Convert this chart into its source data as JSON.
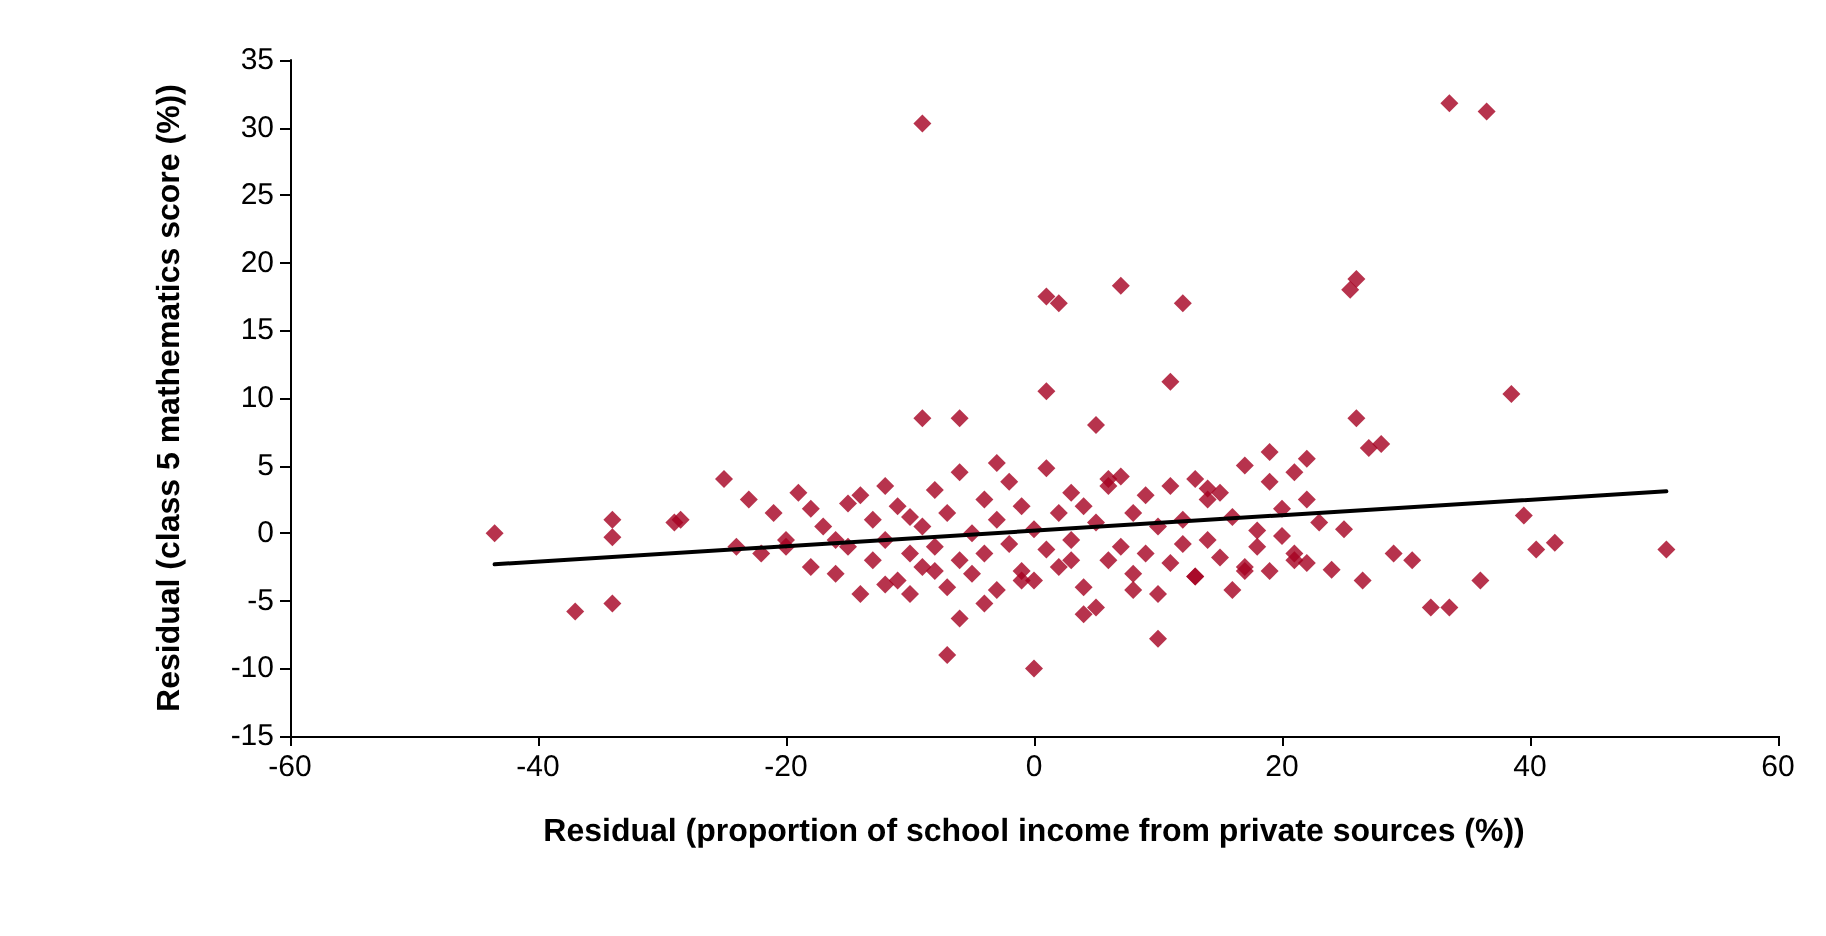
{
  "chart_data": {
    "type": "scatter",
    "xlabel": "Residual (proportion of school income from private sources (%))",
    "ylabel": "Residual (class 5 mathematics score (%))",
    "xlim": [
      -60,
      60
    ],
    "ylim": [
      -15,
      35
    ],
    "xticks": [
      -60,
      -40,
      -20,
      0,
      20,
      40,
      60
    ],
    "yticks": [
      -15,
      -10,
      -5,
      0,
      5,
      10,
      15,
      20,
      25,
      30,
      35
    ],
    "grid": false,
    "marker": "diamond",
    "series": [
      {
        "color": "#a50021",
        "x": [
          -43.5,
          -37,
          -34,
          -34,
          -34,
          -29,
          -28.5,
          -25,
          -9,
          -9,
          -6,
          1,
          2,
          7,
          12,
          1,
          11,
          5,
          25.5,
          26,
          26,
          27,
          28,
          33.5,
          36.5,
          38.5,
          39.5,
          40.5,
          42,
          51,
          36,
          32,
          33.5,
          30.5,
          29,
          26.5,
          24,
          25,
          -7,
          0,
          10,
          4,
          -6,
          -10,
          -24,
          -23,
          -22,
          -21,
          -20,
          -19,
          -18,
          -18,
          -17,
          -16,
          -15,
          -15,
          -14,
          -13,
          -13,
          -12,
          -12,
          -11,
          -11,
          -10,
          -10,
          -9,
          -9,
          -8,
          -8,
          -7,
          -7,
          -6,
          -6,
          -5,
          -5,
          -4,
          -4,
          -3,
          -3,
          -2,
          -2,
          -1,
          -1,
          0,
          0,
          1,
          1,
          2,
          2,
          3,
          3,
          4,
          4,
          5,
          5,
          6,
          6,
          7,
          7,
          8,
          8,
          9,
          9,
          10,
          10,
          11,
          11,
          12,
          12,
          13,
          13,
          14,
          14,
          15,
          15,
          16,
          16,
          17,
          17,
          18,
          18,
          19,
          19,
          20,
          20,
          21,
          21,
          22,
          22,
          23,
          -16,
          -12,
          -8,
          -4,
          -1,
          3,
          8,
          13,
          17,
          21,
          -20,
          -14,
          -3,
          6,
          14,
          19,
          22
        ],
        "values": [
          0,
          -5.8,
          -5.2,
          1,
          -0.3,
          0.8,
          1,
          4,
          30.3,
          8.5,
          8.5,
          17.5,
          17,
          18.3,
          17,
          10.5,
          11.2,
          8,
          18,
          18.8,
          8.5,
          6.3,
          6.6,
          31.8,
          31.2,
          10.3,
          1.3,
          -1.2,
          -0.7,
          -1.2,
          -3.5,
          -5.5,
          -5.5,
          -2,
          -1.5,
          -3.5,
          -2.7,
          0.3,
          -9,
          -10,
          -7.8,
          -6,
          -6.3,
          -4.5,
          -1,
          2.5,
          -1.5,
          1.5,
          -0.5,
          3,
          -2.5,
          1.8,
          0.5,
          -3,
          2.2,
          -1,
          -4.5,
          1,
          -2,
          3.5,
          -0.5,
          2,
          -3.5,
          -1.5,
          1.2,
          -2.5,
          0.5,
          3.2,
          -1,
          -4,
          1.5,
          -2,
          4.5,
          0,
          -3,
          2.5,
          -1.5,
          -4.2,
          1,
          3.8,
          -0.8,
          -2.8,
          2,
          0.3,
          -3.5,
          4.8,
          -1.2,
          1.5,
          -2.5,
          3,
          -0.5,
          -4,
          2,
          -5.5,
          0.8,
          3.5,
          -2,
          -1,
          4.2,
          -3,
          1.5,
          2.8,
          -1.5,
          -4.5,
          0.5,
          3.5,
          -2.2,
          1,
          -0.8,
          4,
          -3.2,
          2.5,
          -0.5,
          -1.8,
          3,
          -4.2,
          1.2,
          -2.5,
          5,
          0.2,
          -1,
          3.8,
          -2.8,
          1.8,
          -0.2,
          4.5,
          -1.5,
          2.5,
          -2.2,
          0.8,
          -0.5,
          -3.8,
          -2.8,
          -5.2,
          -3.5,
          -2,
          -4.2,
          -3.2,
          -2.8,
          -2,
          -1,
          2.8,
          5.2,
          4,
          3.3,
          6,
          5.5
        ]
      },
      {
        "type": "line",
        "color": "#000000",
        "marker": "none",
        "x": [
          -43.5,
          51
        ],
        "values": [
          -2.3,
          3.1
        ]
      }
    ]
  }
}
